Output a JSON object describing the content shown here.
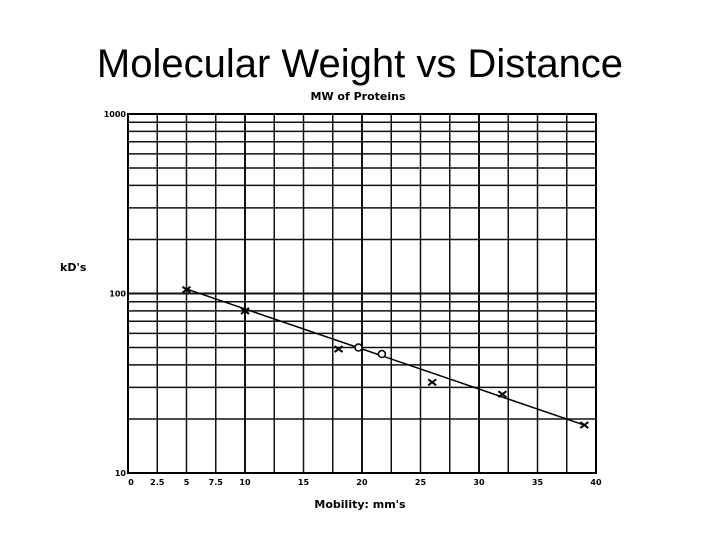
{
  "slide": {
    "title": "Molecular Weight vs Distance"
  },
  "chart_data": {
    "type": "scatter",
    "title": "MW of Proteins",
    "xlabel": "Mobility:   mm's",
    "ylabel": "kD's",
    "xlim": [
      0,
      40
    ],
    "ylim": [
      10,
      1000
    ],
    "yscale": "log",
    "grid": true,
    "x_ticks": [
      "0",
      "2.5",
      "5",
      "7.5",
      "10",
      "15",
      "20",
      "25",
      "30",
      "35",
      "40"
    ],
    "y_ticks": [
      "10",
      "100",
      "1000"
    ],
    "series": [
      {
        "marker": "x",
        "points": [
          [
            5,
            105
          ],
          [
            10,
            80
          ],
          [
            18,
            49
          ],
          [
            26,
            32
          ],
          [
            32,
            27.5
          ],
          [
            39,
            18.5
          ]
        ]
      },
      {
        "marker": "o",
        "points": [
          [
            19.7,
            50
          ],
          [
            21.7,
            46
          ]
        ]
      }
    ],
    "fit_line": {
      "points": [
        [
          5,
          106
        ],
        [
          39,
          18.5
        ]
      ]
    }
  }
}
